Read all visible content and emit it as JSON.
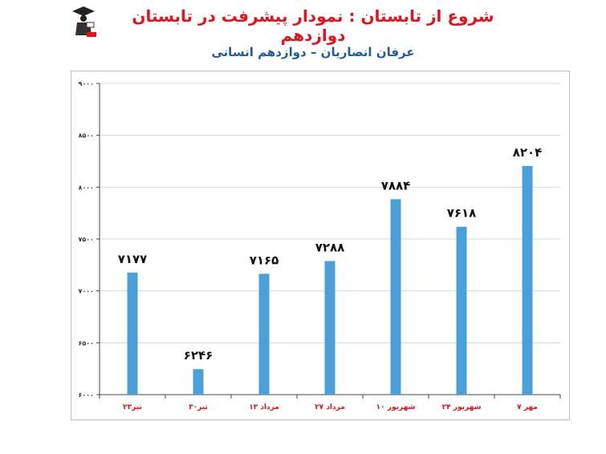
{
  "header": {
    "title": "شروع از تابستان : نمودار پیشرفت در تابستان دوازدهم",
    "subtitle": "عرفان انصاریان – دوازدهم انسانی"
  },
  "logo": {
    "icon": "graduate-logo-icon"
  },
  "colors": {
    "bar": "#4aa0d8",
    "title": "#e8101a",
    "subtitle": "#1f5da0",
    "category": "#e8101a",
    "grid": "#c9d8ee"
  },
  "chart_data": {
    "type": "bar",
    "categories": [
      "۲۳تیر",
      "۳۰تیر",
      "۱۳ مرداد",
      "۲۷ مرداد",
      "۱۰ شهریور",
      "۲۴ شهریور",
      "۷ مهر"
    ],
    "values": [
      7177,
      6246,
      7165,
      7288,
      7884,
      7618,
      8204
    ],
    "value_labels": [
      "۷۱۷۷",
      "۶۲۴۶",
      "۷۱۶۵",
      "۷۲۸۸",
      "۷۸۸۴",
      "۷۶۱۸",
      "۸۲۰۴"
    ],
    "ylim": [
      6000,
      9000
    ],
    "yticks": [
      6000,
      6500,
      7000,
      7500,
      8000,
      8500,
      9000
    ],
    "ytick_labels": [
      "۶۰۰۰",
      "۶۵۰۰",
      "۷۰۰۰",
      "۷۵۰۰",
      "۸۰۰۰",
      "۸۵۰۰",
      "۹۰۰۰"
    ],
    "grid": true,
    "title": "",
    "xlabel": "",
    "ylabel": ""
  }
}
